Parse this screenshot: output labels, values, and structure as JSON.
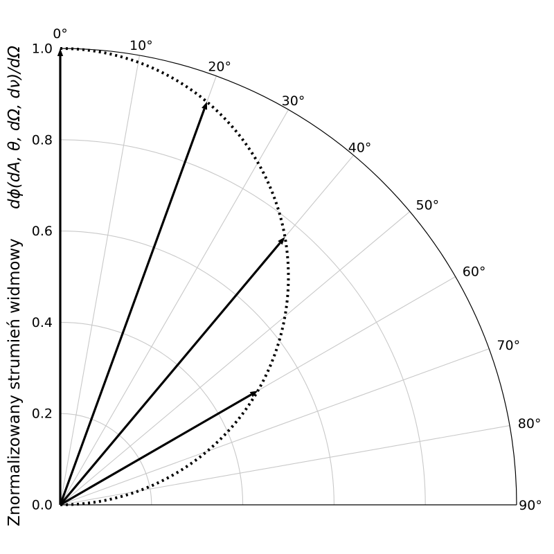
{
  "chart_data": {
    "type": "polar-quarter",
    "angle_unit": "deg",
    "angle_ticks": [
      "0°",
      "10°",
      "20°",
      "30°",
      "40°",
      "50°",
      "60°",
      "70°",
      "80°",
      "90°"
    ],
    "radial_ticks": [
      "0.0",
      "0.2",
      "0.4",
      "0.6",
      "0.8",
      "1.0"
    ],
    "rlim": [
      0,
      1.0
    ],
    "theta_range": [
      0,
      90
    ],
    "grid": true,
    "ylabel": "Znormalizowany strumień widmowy",
    "ylabel_math": "dϕ(dA, θ, dΩ, dν)/dΩ",
    "curve": {
      "style": "dotted",
      "description_series": "cos(theta)",
      "theta": [
        0,
        5,
        10,
        15,
        20,
        25,
        30,
        35,
        40,
        45,
        50,
        55,
        60,
        65,
        70,
        75,
        80,
        85,
        90
      ],
      "r": [
        1.0,
        0.996,
        0.985,
        0.966,
        0.94,
        0.906,
        0.866,
        0.819,
        0.766,
        0.707,
        0.643,
        0.574,
        0.5,
        0.423,
        0.342,
        0.259,
        0.174,
        0.087,
        0.0
      ]
    },
    "arrows": [
      {
        "theta": 0,
        "r": 1.0
      },
      {
        "theta": 20,
        "r": 0.94
      },
      {
        "theta": 40,
        "r": 0.766
      },
      {
        "theta": 60,
        "r": 0.5
      }
    ]
  }
}
